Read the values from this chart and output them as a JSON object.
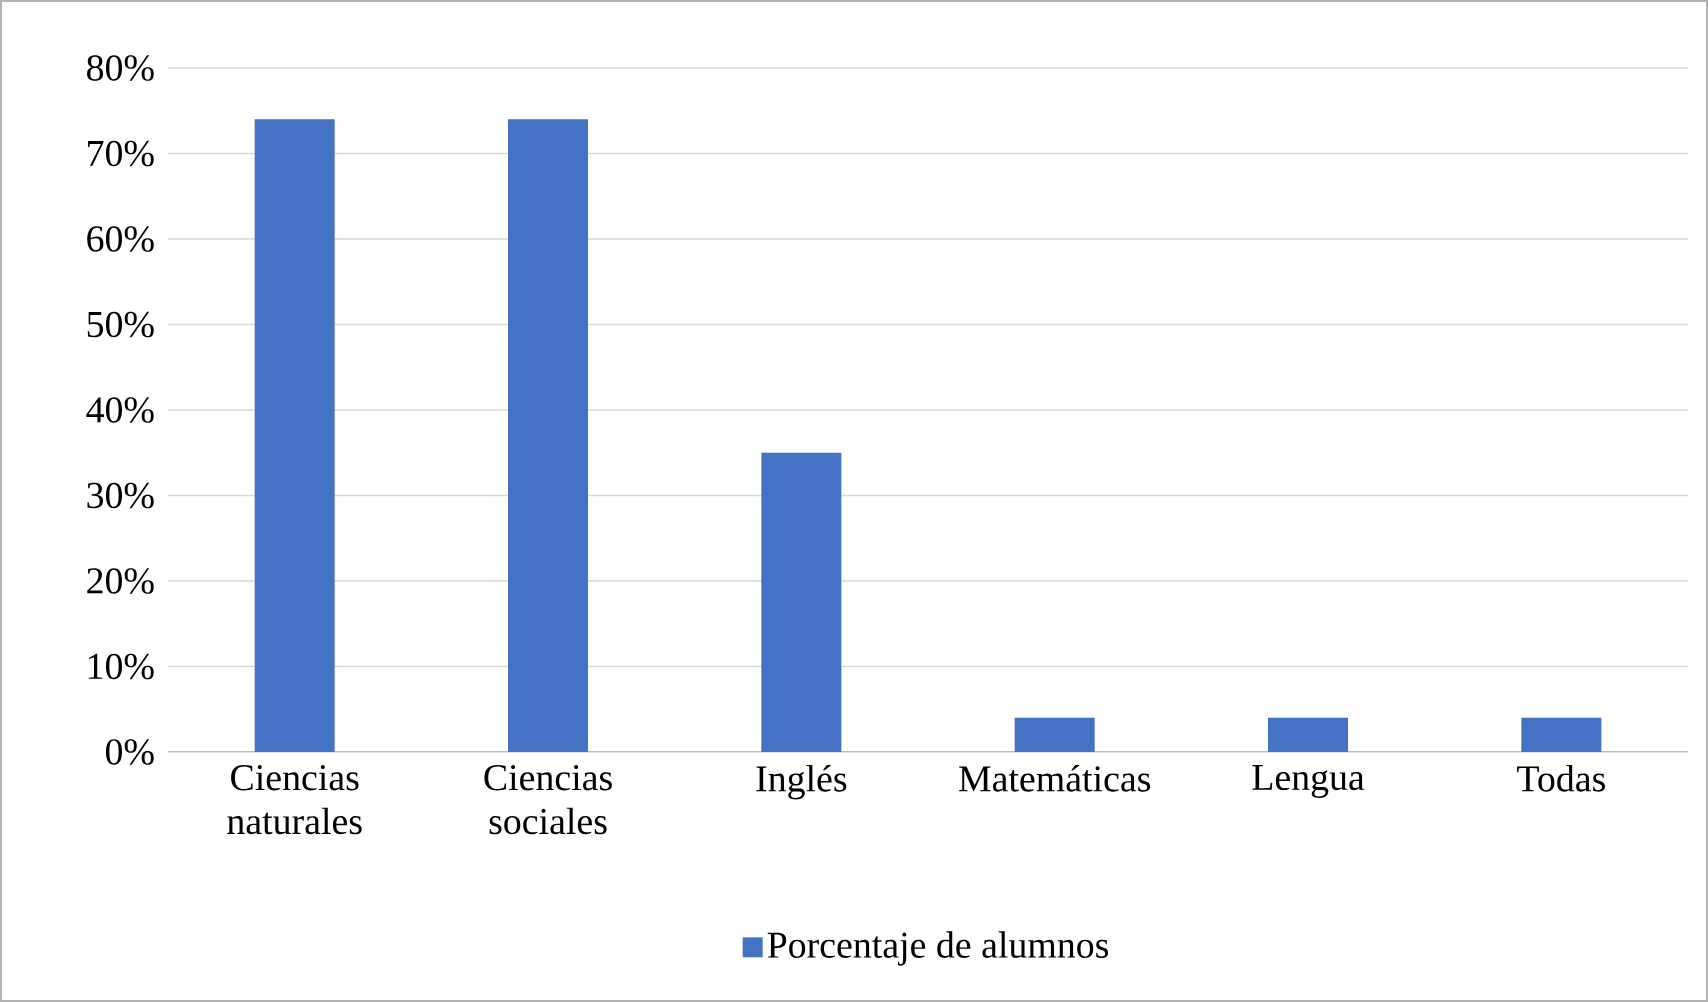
{
  "chart_data": {
    "type": "bar",
    "categories": [
      "Ciencias naturales",
      "Ciencias sociales",
      "Inglés",
      "Matemáticas",
      "Lengua",
      "Todas"
    ],
    "series": [
      {
        "name": "Porcentaje de alumnos",
        "color": "#4472c4",
        "values": [
          74,
          74,
          35,
          4,
          4,
          4
        ]
      }
    ],
    "ylim": [
      0,
      80
    ],
    "yticks": [
      {
        "value": 0,
        "label": "0%"
      },
      {
        "value": 10,
        "label": "10%"
      },
      {
        "value": 20,
        "label": "20%"
      },
      {
        "value": 30,
        "label": "30%"
      },
      {
        "value": 40,
        "label": "40%"
      },
      {
        "value": 50,
        "label": "50%"
      },
      {
        "value": 60,
        "label": "60%"
      },
      {
        "value": 70,
        "label": "70%"
      },
      {
        "value": 80,
        "label": "80%"
      }
    ],
    "grid": "y",
    "legend": "bottom"
  }
}
